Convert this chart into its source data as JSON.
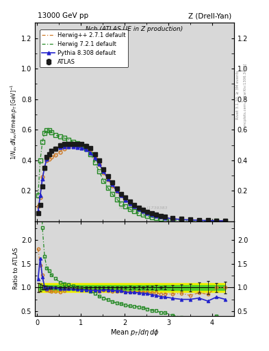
{
  "title_left": "13000 GeV pp",
  "title_right": "Z (Drell-Yan)",
  "plot_title": "Nch (ATLAS UE in Z production)",
  "xlabel": "Mean $p_T$/d$\\eta$ d$\\phi$",
  "ylabel_main": "$1/N_\\mathrm{ev}\\,dN_\\mathrm{ev}/d\\,\\mathrm{mean}\\,p_T\\,[\\mathrm{GeV}]^{-1}$",
  "ylabel_ratio": "Ratio to ATLAS",
  "watermark": "ATLAS_2019_I1739383",
  "rivet_text": "Rivet 3.1.10, ≥ 3M events",
  "arxiv_text": "mcplots.cern.ch [arXiv:1306.3436]",
  "atlas_x": [
    0.02,
    0.07,
    0.12,
    0.17,
    0.22,
    0.27,
    0.32,
    0.42,
    0.52,
    0.62,
    0.72,
    0.82,
    0.92,
    1.02,
    1.12,
    1.22,
    1.32,
    1.42,
    1.52,
    1.62,
    1.72,
    1.82,
    1.92,
    2.02,
    2.12,
    2.22,
    2.32,
    2.42,
    2.52,
    2.62,
    2.72,
    2.82,
    2.92,
    3.1,
    3.3,
    3.5,
    3.7,
    3.9,
    4.1,
    4.3
  ],
  "atlas_y": [
    0.055,
    0.105,
    0.23,
    0.35,
    0.42,
    0.44,
    0.46,
    0.475,
    0.5,
    0.505,
    0.505,
    0.505,
    0.505,
    0.505,
    0.495,
    0.48,
    0.44,
    0.4,
    0.34,
    0.295,
    0.255,
    0.215,
    0.18,
    0.155,
    0.13,
    0.108,
    0.09,
    0.075,
    0.062,
    0.052,
    0.043,
    0.036,
    0.03,
    0.022,
    0.016,
    0.012,
    0.009,
    0.007,
    0.005,
    0.004
  ],
  "atlas_yerr": [
    0.005,
    0.008,
    0.01,
    0.012,
    0.012,
    0.012,
    0.012,
    0.012,
    0.012,
    0.01,
    0.01,
    0.01,
    0.01,
    0.01,
    0.01,
    0.01,
    0.01,
    0.01,
    0.009,
    0.008,
    0.007,
    0.006,
    0.005,
    0.004,
    0.004,
    0.003,
    0.003,
    0.002,
    0.002,
    0.002,
    0.002,
    0.001,
    0.001,
    0.001,
    0.001,
    0.001,
    0.001,
    0.001,
    0.0005,
    0.0005
  ],
  "atlas_band_green": 0.05,
  "atlas_band_yellow": 0.1,
  "herwig_pp_x": [
    0.02,
    0.07,
    0.12,
    0.17,
    0.22,
    0.27,
    0.32,
    0.42,
    0.52,
    0.62,
    0.72,
    0.82,
    0.92,
    1.02,
    1.12,
    1.22,
    1.32,
    1.42,
    1.52,
    1.62,
    1.72,
    1.82,
    1.92,
    2.02,
    2.12,
    2.22,
    2.32,
    2.42,
    2.52,
    2.62,
    2.72,
    2.82,
    2.92,
    3.1,
    3.3,
    3.5,
    3.7,
    3.9,
    4.1,
    4.3
  ],
  "herwig_pp_y": [
    0.1,
    0.155,
    0.29,
    0.35,
    0.4,
    0.41,
    0.42,
    0.435,
    0.455,
    0.475,
    0.49,
    0.495,
    0.495,
    0.495,
    0.48,
    0.455,
    0.415,
    0.37,
    0.32,
    0.275,
    0.235,
    0.198,
    0.168,
    0.14,
    0.118,
    0.098,
    0.082,
    0.068,
    0.056,
    0.046,
    0.038,
    0.031,
    0.026,
    0.019,
    0.014,
    0.01,
    0.008,
    0.006,
    0.005,
    0.004
  ],
  "herwig72_x": [
    0.02,
    0.07,
    0.12,
    0.17,
    0.22,
    0.27,
    0.32,
    0.42,
    0.52,
    0.62,
    0.72,
    0.82,
    0.92,
    1.02,
    1.12,
    1.22,
    1.32,
    1.42,
    1.52,
    1.62,
    1.72,
    1.82,
    1.92,
    2.02,
    2.12,
    2.22,
    2.32,
    2.42,
    2.52,
    2.62,
    2.72,
    2.82,
    2.92,
    3.1,
    3.3,
    3.5,
    3.7,
    3.9,
    4.1,
    4.3
  ],
  "herwig72_y": [
    0.17,
    0.4,
    0.52,
    0.58,
    0.595,
    0.595,
    0.585,
    0.565,
    0.555,
    0.545,
    0.535,
    0.52,
    0.51,
    0.5,
    0.475,
    0.44,
    0.385,
    0.325,
    0.265,
    0.218,
    0.178,
    0.145,
    0.118,
    0.097,
    0.079,
    0.065,
    0.053,
    0.043,
    0.034,
    0.027,
    0.022,
    0.017,
    0.014,
    0.009,
    0.006,
    0.004,
    0.003,
    0.002,
    0.002,
    0.001
  ],
  "pythia_x": [
    0.02,
    0.07,
    0.12,
    0.17,
    0.22,
    0.27,
    0.32,
    0.42,
    0.52,
    0.62,
    0.72,
    0.82,
    0.92,
    1.02,
    1.12,
    1.22,
    1.32,
    1.42,
    1.52,
    1.62,
    1.72,
    1.82,
    1.92,
    2.02,
    2.12,
    2.22,
    2.32,
    2.42,
    2.52,
    2.62,
    2.72,
    2.82,
    2.92,
    3.1,
    3.3,
    3.5,
    3.7,
    3.9,
    4.1,
    4.3
  ],
  "pythia_y": [
    0.065,
    0.17,
    0.28,
    0.355,
    0.41,
    0.44,
    0.46,
    0.475,
    0.485,
    0.49,
    0.49,
    0.49,
    0.485,
    0.48,
    0.47,
    0.45,
    0.415,
    0.375,
    0.325,
    0.28,
    0.24,
    0.2,
    0.168,
    0.14,
    0.117,
    0.097,
    0.08,
    0.066,
    0.054,
    0.044,
    0.036,
    0.029,
    0.024,
    0.017,
    0.012,
    0.009,
    0.007,
    0.005,
    0.004,
    0.003
  ],
  "ylim_main": [
    0.0,
    1.3
  ],
  "ylim_ratio": [
    0.4,
    2.4
  ],
  "xlim": [
    -0.05,
    4.5
  ],
  "yticks_main": [
    0.2,
    0.4,
    0.6,
    0.8,
    1.0,
    1.2
  ],
  "yticks_ratio": [
    0.5,
    1.0,
    1.5,
    2.0
  ],
  "xticks": [
    0,
    1,
    2,
    3,
    4
  ],
  "color_atlas": "#1a1a1a",
  "color_herwig_pp": "#cc7722",
  "color_herwig72": "#228822",
  "color_pythia": "#2222cc",
  "color_band_green": "#33cc33",
  "color_band_yellow": "#eeee00",
  "bg_color": "#d8d8d8"
}
